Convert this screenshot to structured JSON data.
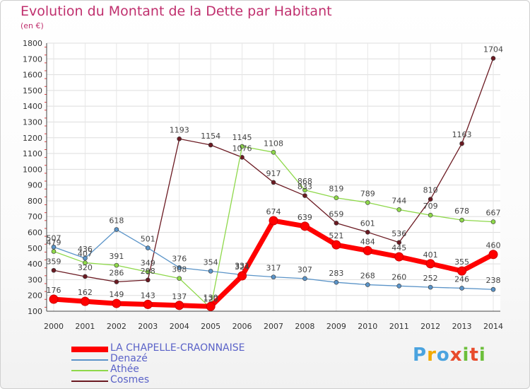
{
  "title": "Evolution du Montant de la Dette par Habitant",
  "subtitle": "(en €)",
  "logo": {
    "text": "Proxiti",
    "colors": [
      "#4aa3df",
      "#f2a900",
      "#4aa3df",
      "#e84b2c",
      "#6cbf3b",
      "#e84b2c",
      "#6cbf3b"
    ]
  },
  "chart_data": {
    "type": "line",
    "x": [
      2000,
      2001,
      2002,
      2003,
      2004,
      2005,
      2006,
      2007,
      2008,
      2009,
      2010,
      2011,
      2012,
      2013,
      2014
    ],
    "ylim": [
      100,
      1800
    ],
    "yticks": [
      100,
      200,
      300,
      400,
      500,
      600,
      700,
      800,
      900,
      1000,
      1100,
      1200,
      1300,
      1400,
      1500,
      1600,
      1700,
      1800
    ],
    "grid": true,
    "legend_position": "bottom-left",
    "series": [
      {
        "name": "Cosmes",
        "color": "#6b1a22",
        "values": [
          359,
          320,
          286,
          298,
          1193,
          1154,
          1076,
          917,
          833,
          659,
          601,
          536,
          810,
          1163,
          1704
        ]
      },
      {
        "name": "Athée",
        "color": "#8ed84a",
        "values": [
          479,
          407,
          391,
          349,
          308,
          120,
          1145,
          1108,
          868,
          819,
          789,
          744,
          709,
          678,
          667
        ]
      },
      {
        "name": "Denazé",
        "color": "#5b94c8",
        "values": [
          507,
          436,
          618,
          501,
          376,
          354,
          331,
          317,
          307,
          283,
          268,
          260,
          252,
          246,
          238
        ]
      },
      {
        "name": "LA CHAPELLE-CRAONNAISE",
        "color": "#ff0000",
        "values": [
          176,
          162,
          149,
          143,
          137,
          130,
          324,
          674,
          639,
          521,
          484,
          445,
          401,
          355,
          460
        ]
      }
    ]
  }
}
